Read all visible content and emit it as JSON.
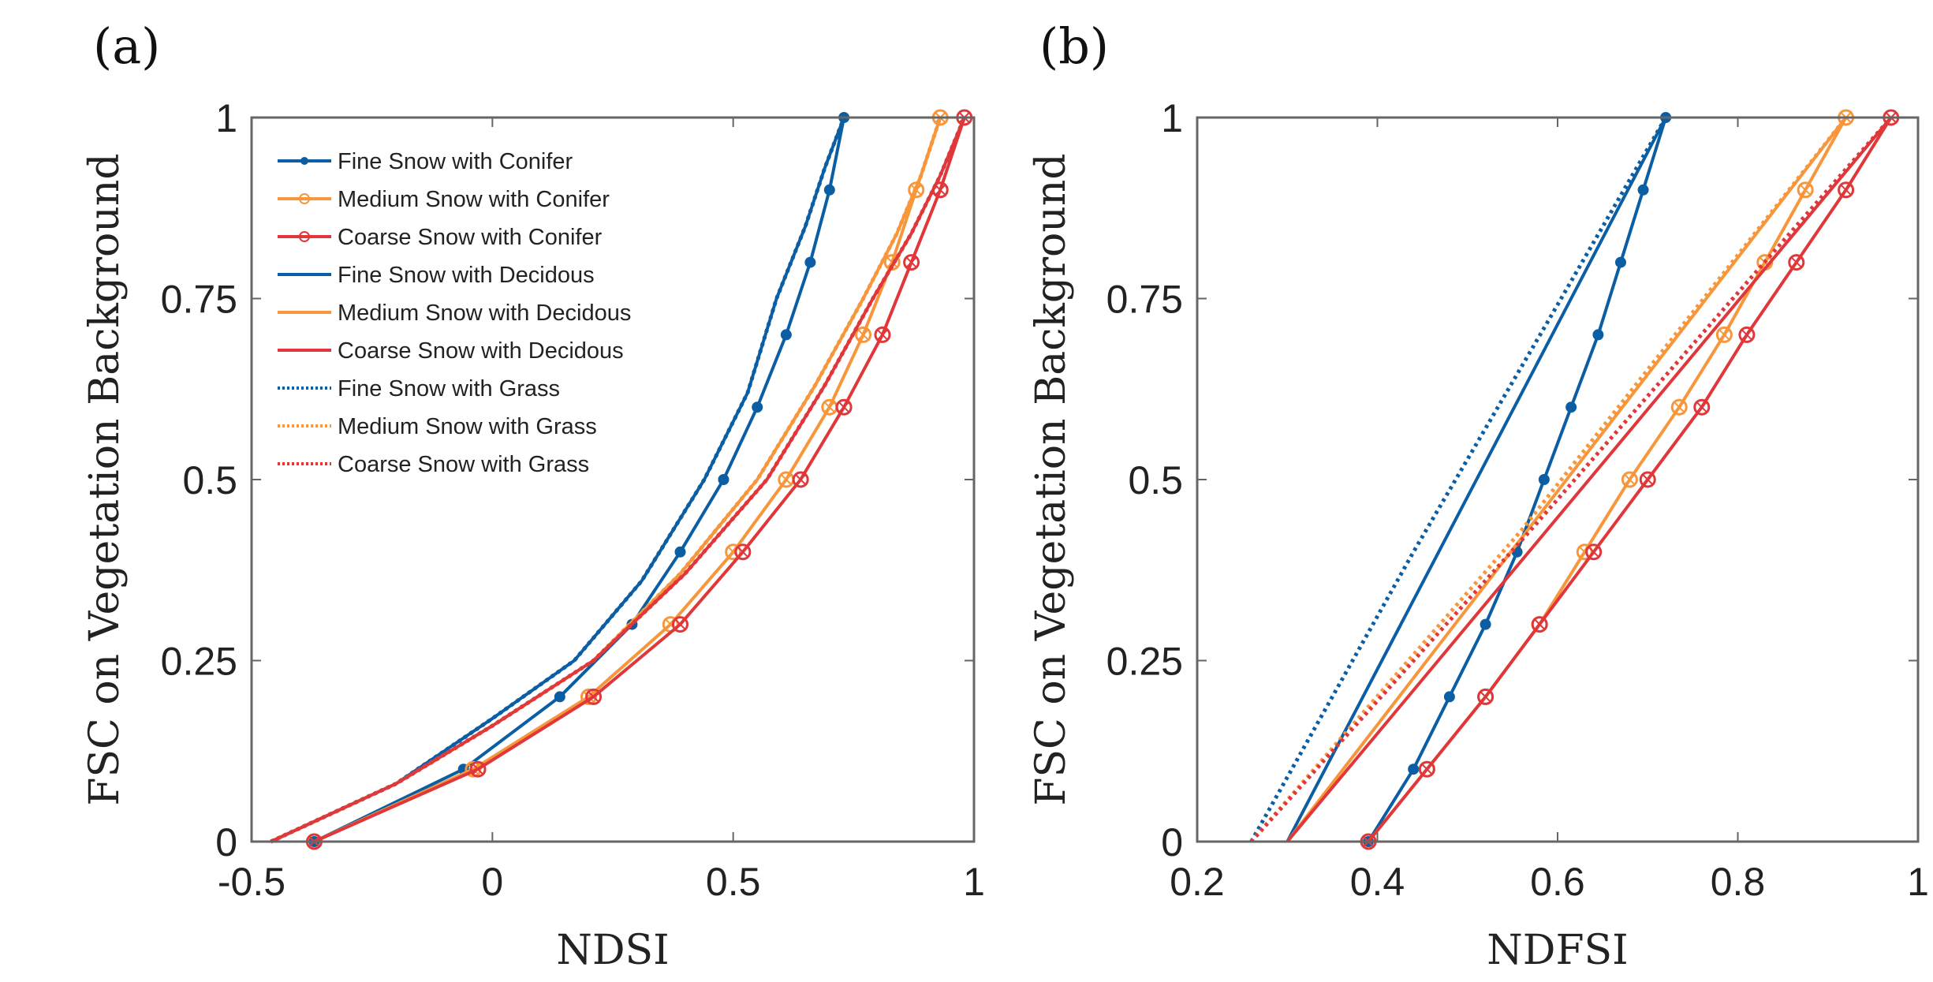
{
  "colors": {
    "fine": "#0b5ea3",
    "medium": "#f7963a",
    "coarse": "#e0373a",
    "axis": "#666666"
  },
  "chart_data": [
    {
      "type": "line",
      "panel_label": "(a)",
      "xlabel": "NDSI",
      "ylabel": "FSC on Vegetation Background",
      "xlim": [
        -0.5,
        1
      ],
      "ylim": [
        0,
        1
      ],
      "xticks": [
        -0.5,
        0,
        0.5,
        1
      ],
      "xtick_labels": [
        "-0.5",
        "0",
        "0.5",
        "1"
      ],
      "yticks": [
        0,
        0.25,
        0.5,
        0.75,
        1
      ],
      "ytick_labels": [
        "0",
        "0.25",
        "0.5",
        "0.75",
        "1"
      ],
      "legend_position": "top-left",
      "series": [
        {
          "name": "Fine Snow with Conifer",
          "color": "fine",
          "style": "solid",
          "marker": "dot",
          "x": [
            -0.37,
            -0.06,
            0.14,
            0.29,
            0.39,
            0.48,
            0.55,
            0.61,
            0.66,
            0.7,
            0.73
          ],
          "y": [
            0,
            0.1,
            0.2,
            0.3,
            0.4,
            0.5,
            0.6,
            0.7,
            0.8,
            0.9,
            1
          ]
        },
        {
          "name": "Medium Snow with Conifer",
          "color": "medium",
          "style": "solid",
          "marker": "circle",
          "x": [
            -0.37,
            -0.04,
            0.2,
            0.37,
            0.5,
            0.61,
            0.7,
            0.77,
            0.83,
            0.88,
            0.93
          ],
          "y": [
            0,
            0.1,
            0.2,
            0.3,
            0.4,
            0.5,
            0.6,
            0.7,
            0.8,
            0.9,
            1
          ]
        },
        {
          "name": "Coarse Snow with Conifer",
          "color": "coarse",
          "style": "solid",
          "marker": "circle",
          "x": [
            -0.37,
            -0.03,
            0.21,
            0.39,
            0.52,
            0.64,
            0.73,
            0.81,
            0.87,
            0.93,
            0.98
          ],
          "y": [
            0,
            0.1,
            0.2,
            0.3,
            0.4,
            0.5,
            0.6,
            0.7,
            0.8,
            0.9,
            1
          ]
        },
        {
          "name": "Fine Snow with Decidous",
          "color": "fine",
          "style": "solid",
          "marker": "none",
          "x": [
            -0.46,
            -0.2,
            0.0,
            0.17,
            0.31,
            0.44,
            0.53,
            0.59,
            0.65,
            0.69,
            0.73
          ],
          "y": [
            0,
            0.08,
            0.17,
            0.25,
            0.36,
            0.5,
            0.62,
            0.75,
            0.85,
            0.93,
            1
          ]
        },
        {
          "name": "Medium Snow with Decidous",
          "color": "medium",
          "style": "solid",
          "marker": "none",
          "x": [
            -0.46,
            -0.2,
            0.0,
            0.21,
            0.39,
            0.55,
            0.67,
            0.77,
            0.84,
            0.89,
            0.93
          ],
          "y": [
            0,
            0.08,
            0.16,
            0.25,
            0.37,
            0.5,
            0.63,
            0.75,
            0.84,
            0.92,
            1
          ]
        },
        {
          "name": "Coarse Snow with Decidous",
          "color": "coarse",
          "style": "solid",
          "marker": "none",
          "x": [
            -0.46,
            -0.2,
            0.0,
            0.21,
            0.4,
            0.57,
            0.69,
            0.79,
            0.87,
            0.93,
            0.98
          ],
          "y": [
            0,
            0.08,
            0.16,
            0.25,
            0.37,
            0.5,
            0.63,
            0.75,
            0.84,
            0.92,
            1
          ]
        },
        {
          "name": "Fine Snow with Grass",
          "color": "fine",
          "style": "dotted",
          "marker": "none",
          "x": [
            -0.46,
            -0.2,
            0.0,
            0.17,
            0.31,
            0.44,
            0.53,
            0.59,
            0.65,
            0.69,
            0.73
          ],
          "y": [
            0,
            0.08,
            0.17,
            0.25,
            0.36,
            0.5,
            0.62,
            0.75,
            0.85,
            0.93,
            1
          ]
        },
        {
          "name": "Medium Snow with Grass",
          "color": "medium",
          "style": "dotted",
          "marker": "none",
          "x": [
            -0.46,
            -0.2,
            0.0,
            0.21,
            0.39,
            0.55,
            0.67,
            0.77,
            0.84,
            0.89,
            0.93
          ],
          "y": [
            0,
            0.08,
            0.16,
            0.25,
            0.37,
            0.5,
            0.63,
            0.75,
            0.84,
            0.92,
            1
          ]
        },
        {
          "name": "Coarse Snow with Grass",
          "color": "coarse",
          "style": "dotted",
          "marker": "none",
          "x": [
            -0.46,
            -0.2,
            0.0,
            0.21,
            0.4,
            0.57,
            0.69,
            0.79,
            0.87,
            0.93,
            0.98
          ],
          "y": [
            0,
            0.08,
            0.16,
            0.25,
            0.37,
            0.5,
            0.63,
            0.75,
            0.84,
            0.92,
            1
          ]
        }
      ]
    },
    {
      "type": "line",
      "panel_label": "(b)",
      "xlabel": "NDFSI",
      "ylabel": "FSC on Vegetation Background",
      "xlim": [
        0.2,
        1
      ],
      "ylim": [
        0,
        1
      ],
      "xticks": [
        0.2,
        0.4,
        0.6,
        0.8,
        1
      ],
      "xtick_labels": [
        "0.2",
        "0.4",
        "0.6",
        "0.8",
        "1"
      ],
      "yticks": [
        0,
        0.25,
        0.5,
        0.75,
        1
      ],
      "ytick_labels": [
        "0",
        "0.25",
        "0.5",
        "0.75",
        "1"
      ],
      "series": [
        {
          "name": "Fine Snow with Conifer",
          "color": "fine",
          "style": "solid",
          "marker": "dot",
          "x": [
            0.39,
            0.44,
            0.48,
            0.52,
            0.555,
            0.585,
            0.615,
            0.645,
            0.67,
            0.695,
            0.72
          ],
          "y": [
            0,
            0.1,
            0.2,
            0.3,
            0.4,
            0.5,
            0.6,
            0.7,
            0.8,
            0.9,
            1
          ]
        },
        {
          "name": "Medium Snow with Conifer",
          "color": "medium",
          "style": "solid",
          "marker": "circle",
          "x": [
            0.39,
            0.455,
            0.52,
            0.58,
            0.63,
            0.68,
            0.735,
            0.785,
            0.83,
            0.875,
            0.92
          ],
          "y": [
            0,
            0.1,
            0.2,
            0.3,
            0.4,
            0.5,
            0.6,
            0.7,
            0.8,
            0.9,
            1
          ]
        },
        {
          "name": "Coarse Snow with Conifer",
          "color": "coarse",
          "style": "solid",
          "marker": "circle",
          "x": [
            0.39,
            0.455,
            0.52,
            0.58,
            0.64,
            0.7,
            0.76,
            0.81,
            0.865,
            0.92,
            0.97
          ],
          "y": [
            0,
            0.1,
            0.2,
            0.3,
            0.4,
            0.5,
            0.6,
            0.7,
            0.8,
            0.9,
            1
          ]
        },
        {
          "name": "Fine Snow with Decidous",
          "color": "fine",
          "style": "solid",
          "marker": "none",
          "x": [
            0.3,
            0.72
          ],
          "y": [
            0,
            1
          ]
        },
        {
          "name": "Medium Snow with Decidous",
          "color": "medium",
          "style": "solid",
          "marker": "none",
          "x": [
            0.3,
            0.92
          ],
          "y": [
            0,
            1
          ]
        },
        {
          "name": "Coarse Snow with Decidous",
          "color": "coarse",
          "style": "solid",
          "marker": "none",
          "x": [
            0.3,
            0.97
          ],
          "y": [
            0,
            1
          ]
        },
        {
          "name": "Fine Snow with Grass",
          "color": "fine",
          "style": "dotted",
          "marker": "none",
          "x": [
            0.26,
            0.44,
            0.59,
            0.72
          ],
          "y": [
            0,
            0.4,
            0.72,
            1
          ]
        },
        {
          "name": "Medium Snow with Grass",
          "color": "medium",
          "style": "dotted",
          "marker": "none",
          "x": [
            0.26,
            0.56,
            0.92
          ],
          "y": [
            0,
            0.43,
            1
          ]
        },
        {
          "name": "Coarse Snow with Grass",
          "color": "coarse",
          "style": "dotted",
          "marker": "none",
          "x": [
            0.26,
            0.57,
            0.97
          ],
          "y": [
            0,
            0.43,
            1
          ]
        }
      ]
    }
  ]
}
